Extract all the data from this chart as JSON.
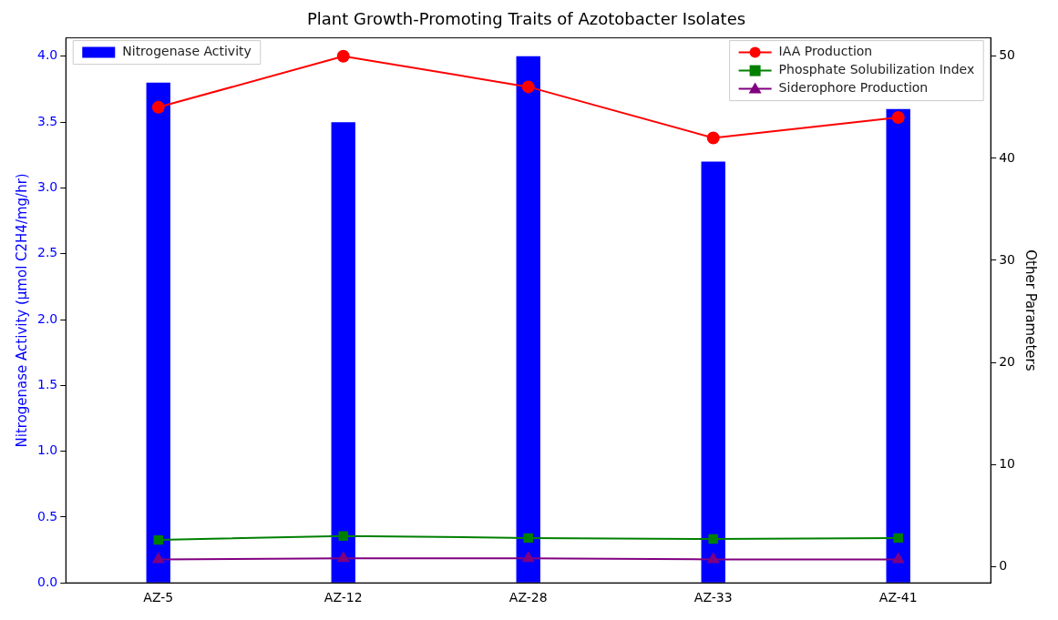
{
  "chart_data": {
    "type": "bar",
    "title": "Plant Growth-Promoting Traits of Azotobacter Isolates",
    "categories": [
      "AZ-5",
      "AZ-12",
      "AZ-28",
      "AZ-33",
      "AZ-41"
    ],
    "ylabel": "Nitrogenase Activity (µmol C2H4/mg/hr)",
    "y2label": "Other Parameters",
    "ylim": [
      0,
      4.14
    ],
    "yticks": [
      {
        "value": 0,
        "label": "0.0"
      },
      0.5,
      {
        "value": 1,
        "label": "1.0"
      },
      1.5,
      {
        "value": 2,
        "label": "2.0"
      },
      2.5,
      {
        "value": 3,
        "label": "3.0"
      },
      3.5,
      {
        "value": 4,
        "label": "4.0"
      }
    ],
    "y2lim": [
      -1.6,
      51.8
    ],
    "y2ticks": [
      0,
      10,
      20,
      30,
      40,
      50
    ],
    "grid": false,
    "legend": "top right",
    "series": [
      {
        "name": "Nitrogenase Activity",
        "color": "#0000ff",
        "values": [
          3.8,
          3.5,
          4.0,
          3.2,
          3.6
        ]
      },
      {
        "name": "IAA Production",
        "type": "line",
        "axis": "y2",
        "marker": "circle",
        "color": "#ff0000",
        "values": [
          45,
          50,
          47,
          42,
          44
        ]
      },
      {
        "name": "Phosphate Solubilization Index",
        "type": "line",
        "axis": "y2",
        "marker": "square",
        "color": "#008000",
        "values": [
          2.6,
          3.0,
          2.8,
          2.7,
          2.8
        ]
      },
      {
        "name": "Siderophore Production",
        "type": "line",
        "axis": "y2",
        "marker": "triangle",
        "color": "#800080",
        "values": [
          0.7,
          0.8,
          0.8,
          0.7,
          0.7
        ]
      }
    ]
  }
}
